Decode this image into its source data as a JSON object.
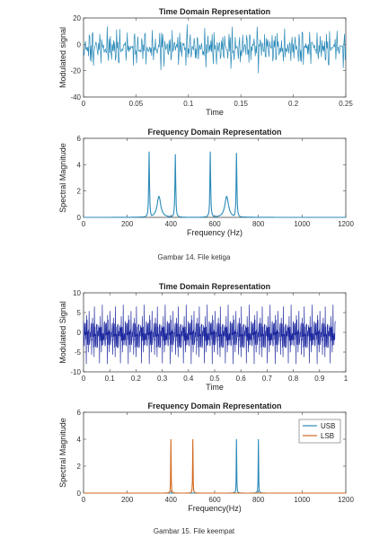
{
  "colors": {
    "blue": "#2a8ab8",
    "darkblue": "#1f2aa0",
    "orange": "#d2691e"
  },
  "captions": {
    "c1": "Gambar 14. File ketiga",
    "c2": "Gambar 15. File keempat"
  },
  "chart_data": [
    {
      "type": "line",
      "title": "Time Domain Representation",
      "xlabel": "Time",
      "ylabel": "Modulated signal",
      "xlim": [
        0,
        0.25
      ],
      "ylim": [
        -40,
        20
      ],
      "xticks": [
        0,
        0.05,
        0.1,
        0.15,
        0.2,
        0.25
      ],
      "xtick_labels": [
        "0",
        "0.05",
        "0.1",
        "0.15",
        "0.2",
        "0.25"
      ],
      "yticks": [
        -40,
        -20,
        0,
        20
      ],
      "ytick_labels": [
        "-40",
        "-20",
        "0",
        "20"
      ],
      "series": [
        {
          "kind": "signal",
          "color": "#2a8ab8",
          "n": 420,
          "components": [
            {
              "f": 300,
              "a": 6
            },
            {
              "f": 420,
              "a": 6
            },
            {
              "f": 580,
              "a": 6
            },
            {
              "f": 700,
              "a": 6
            },
            {
              "f": 345,
              "a": 2.5
            },
            {
              "f": 655,
              "a": 2.5
            }
          ],
          "range": [
            -22,
            15
          ]
        }
      ]
    },
    {
      "type": "line",
      "title": "Frequency Domain Representation",
      "xlabel": "Frequency (Hz)",
      "ylabel": "Spectral Magnitude",
      "xlim": [
        0,
        1200
      ],
      "ylim": [
        0,
        6
      ],
      "xticks": [
        0,
        200,
        400,
        600,
        800,
        1000,
        1200
      ],
      "xtick_labels": [
        "0",
        "200",
        "400",
        "600",
        "800",
        "1000",
        "1200"
      ],
      "yticks": [
        0,
        2,
        4,
        6
      ],
      "ytick_labels": [
        "0",
        "2",
        "4",
        "6"
      ],
      "series": [
        {
          "kind": "spectrum",
          "color": "#2a8ab8",
          "peaks": [
            {
              "f": 300,
              "v": 5.0,
              "w": 2
            },
            {
              "f": 345,
              "v": 1.6,
              "w": 10
            },
            {
              "f": 420,
              "v": 4.8,
              "w": 2
            },
            {
              "f": 580,
              "v": 5.0,
              "w": 2
            },
            {
              "f": 655,
              "v": 1.6,
              "w": 10
            },
            {
              "f": 700,
              "v": 4.9,
              "w": 2
            }
          ]
        }
      ]
    },
    {
      "type": "line",
      "title": "Time Domain Representation",
      "xlabel": "Time",
      "ylabel": "Modulated Signal",
      "xlim": [
        0,
        1
      ],
      "ylim": [
        -10,
        10
      ],
      "xticks": [
        0,
        0.1,
        0.2,
        0.3,
        0.4,
        0.5,
        0.6,
        0.7,
        0.8,
        0.9,
        1
      ],
      "xtick_labels": [
        "0",
        "0.1",
        "0.2",
        "0.3",
        "0.4",
        "0.5",
        "0.6",
        "0.7",
        "0.8",
        "0.9",
        "1"
      ],
      "yticks": [
        -10,
        -5,
        0,
        5,
        10
      ],
      "ytick_labels": [
        "-10",
        "-5",
        "0",
        "5",
        "10"
      ],
      "series": [
        {
          "kind": "signal",
          "color": "#1f2aa0",
          "n": 900,
          "tmax": 0.96,
          "components": [
            {
              "f": 400,
              "a": 2
            },
            {
              "f": 500,
              "a": 2
            },
            {
              "f": 700,
              "a": 2
            },
            {
              "f": 800,
              "a": 2
            }
          ],
          "range": [
            -8,
            7
          ]
        }
      ]
    },
    {
      "type": "line",
      "title": "Frequency Domain Representation",
      "xlabel": "Frequency(Hz)",
      "ylabel": "Spectral Magnitude",
      "xlim": [
        0,
        1200
      ],
      "ylim": [
        0,
        6
      ],
      "xticks": [
        0,
        200,
        400,
        600,
        800,
        1000,
        1200
      ],
      "xtick_labels": [
        "0",
        "200",
        "400",
        "600",
        "800",
        "1000",
        "1200"
      ],
      "yticks": [
        0,
        2,
        4,
        6
      ],
      "ytick_labels": [
        "0",
        "2",
        "4",
        "6"
      ],
      "legend": {
        "position": "top-right",
        "entries": [
          {
            "name": "USB",
            "color": "#2a8ab8"
          },
          {
            "name": "LSB",
            "color": "#d2691e"
          }
        ]
      },
      "series": [
        {
          "kind": "spectrum",
          "name": "USB",
          "color": "#2a8ab8",
          "peaks": [
            {
              "f": 700,
              "v": 4.0,
              "w": 1
            },
            {
              "f": 800,
              "v": 4.0,
              "w": 1
            }
          ]
        },
        {
          "kind": "spectrum",
          "name": "LSB",
          "color": "#d2691e",
          "peaks": [
            {
              "f": 400,
              "v": 4.0,
              "w": 1
            },
            {
              "f": 500,
              "v": 4.0,
              "w": 1
            }
          ]
        }
      ]
    }
  ]
}
